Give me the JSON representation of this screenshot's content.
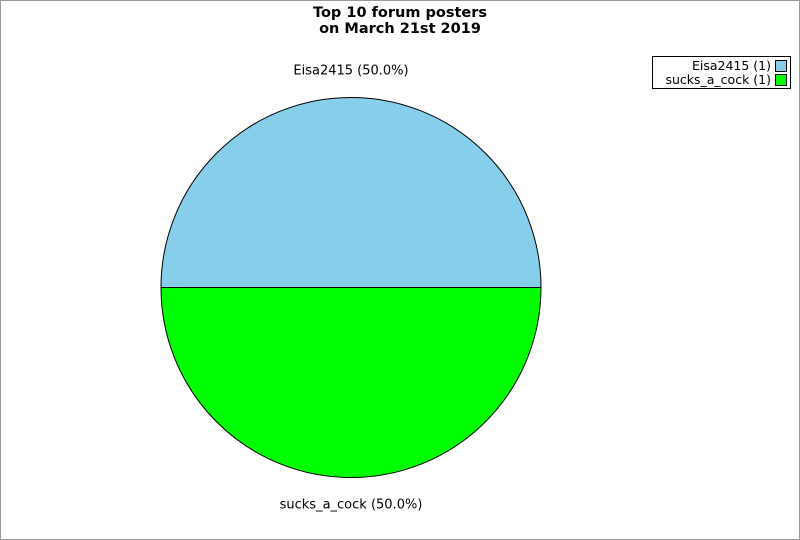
{
  "title": {
    "line1": "Top 10 forum posters",
    "line2": "on March 21st 2019"
  },
  "chart_data": {
    "type": "pie",
    "title": "Top 10 forum posters on March 21st 2019",
    "slices": [
      {
        "label": "Eisa2415",
        "value": 1,
        "percent": "50.0%",
        "display_label": "Eisa2415 (50.0%)",
        "color": "#87CEEB"
      },
      {
        "label": "sucks_a_cock",
        "value": 1,
        "percent": "50.0%",
        "display_label": "sucks_a_cock (50.0%)",
        "color": "#00FF00"
      }
    ],
    "legend": {
      "position": "top-right",
      "entries": [
        {
          "label": "Eisa2415 (1)",
          "color": "#87CEEB"
        },
        {
          "label": "sucks_a_cock (1)",
          "color": "#00FF00"
        }
      ]
    },
    "outline_color": "#000000",
    "frame_border_color": "#9a9a9a",
    "background_color": "#ffffff"
  }
}
